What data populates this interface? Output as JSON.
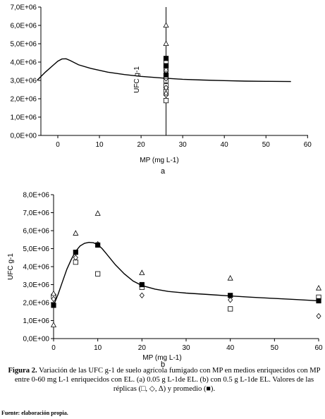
{
  "chart_data": [
    {
      "type": "scatter",
      "panel_label": "a",
      "xlabel": "MP (mg L-1)",
      "ylabel": "UFC g-1",
      "xlim": [
        -5,
        60
      ],
      "ylim": [
        0,
        7000000
      ],
      "xticks": [
        "0",
        "10",
        "20",
        "30",
        "40",
        "50",
        "60"
      ],
      "yticks": [
        "0,0E+00",
        "1,0E+06",
        "2,0E+06",
        "3,0E+06",
        "4,0E+06",
        "5,0E+06",
        "6,0E+06",
        "7,0E+06"
      ],
      "grid": false,
      "fit_curve": {
        "x": [
          -5,
          -3,
          -1,
          0,
          1,
          2,
          3,
          5,
          8,
          12,
          16,
          20,
          25,
          30,
          35,
          40,
          45,
          50,
          56
        ],
        "y": [
          3000000,
          3450000,
          3850000,
          4050000,
          4170000,
          4180000,
          4080000,
          3850000,
          3650000,
          3450000,
          3320000,
          3220000,
          3130000,
          3060000,
          3020000,
          2990000,
          2960000,
          2950000,
          2940000
        ]
      },
      "error_bar": {
        "x": 26,
        "y_low": 0,
        "y_high": 7000000
      },
      "series": [
        {
          "marker": "square",
          "x": [
            26,
            26,
            26,
            26,
            26,
            26,
            26
          ],
          "y": [
            1900000,
            2400000,
            2700000,
            3000000,
            3300000,
            3700000,
            4000000
          ]
        },
        {
          "marker": "diamond",
          "x": [
            26,
            26,
            26,
            26
          ],
          "y": [
            2200000,
            2600000,
            3100000,
            3500000
          ]
        },
        {
          "marker": "triangle",
          "x": [
            26,
            26,
            26,
            26,
            26
          ],
          "y": [
            2300000,
            3200000,
            3600000,
            5000000,
            6000000
          ]
        },
        {
          "marker": "filled-square",
          "x": [
            26,
            26,
            26
          ],
          "y": [
            3300000,
            3800000,
            4200000
          ]
        }
      ]
    },
    {
      "type": "scatter",
      "panel_label": "b",
      "xlabel": "MP (mg L-1)",
      "ylabel": "UFC g-1",
      "xlim": [
        0,
        60
      ],
      "ylim": [
        0,
        8000000
      ],
      "xticks": [
        "0",
        "10",
        "20",
        "30",
        "40",
        "50",
        "60"
      ],
      "yticks": [
        "0,0E+00",
        "1,0E+06",
        "2,0E+06",
        "3,0E+06",
        "4,0E+06",
        "5,0E+06",
        "6,0E+06",
        "7,0E+06",
        "8,0E+06"
      ],
      "grid": false,
      "fit_curve": {
        "x": [
          0,
          1,
          2,
          3,
          4,
          5,
          6,
          7,
          8,
          9,
          10,
          11,
          12,
          14,
          16,
          18,
          20,
          23,
          26,
          30,
          35,
          40,
          45,
          50,
          55,
          60
        ],
        "y": [
          1850000,
          2450000,
          3150000,
          3850000,
          4400000,
          4850000,
          5150000,
          5300000,
          5350000,
          5330000,
          5220000,
          5000000,
          4700000,
          4100000,
          3600000,
          3200000,
          2950000,
          2750000,
          2620000,
          2530000,
          2450000,
          2370000,
          2300000,
          2230000,
          2170000,
          2100000
        ]
      },
      "series": [
        {
          "marker": "square",
          "x": [
            0,
            5,
            10,
            20,
            40,
            60
          ],
          "y": [
            2350000,
            4250000,
            3600000,
            2850000,
            1650000,
            2300000
          ]
        },
        {
          "marker": "diamond",
          "x": [
            0,
            5,
            10,
            20,
            40,
            60
          ],
          "y": [
            2200000,
            4500000,
            5250000,
            2400000,
            2150000,
            1250000
          ]
        },
        {
          "marker": "triangle",
          "x": [
            0,
            0,
            5,
            10,
            20,
            40,
            60
          ],
          "y": [
            750000,
            2500000,
            5850000,
            6950000,
            3650000,
            3350000,
            2800000
          ]
        },
        {
          "marker": "filled-square",
          "x": [
            0,
            5,
            10,
            20,
            40,
            60
          ],
          "y": [
            1850000,
            4800000,
            5200000,
            3000000,
            2400000,
            2100000
          ]
        }
      ]
    }
  ],
  "caption": {
    "label": "Figura 2.",
    "text": "Variación de las UFC g-1 de suelo agrícola fumigado con MP en medios enriquecidos con MP entre 0-60 mg L-1 enriquecidos con EL. (a) 0.05 g L-1de EL. (b) con 0.5 g L-1de EL. Valores de las réplicas (□, ◇, ∆) y promedio (■)."
  },
  "source": "Fuente: elaboración propia."
}
